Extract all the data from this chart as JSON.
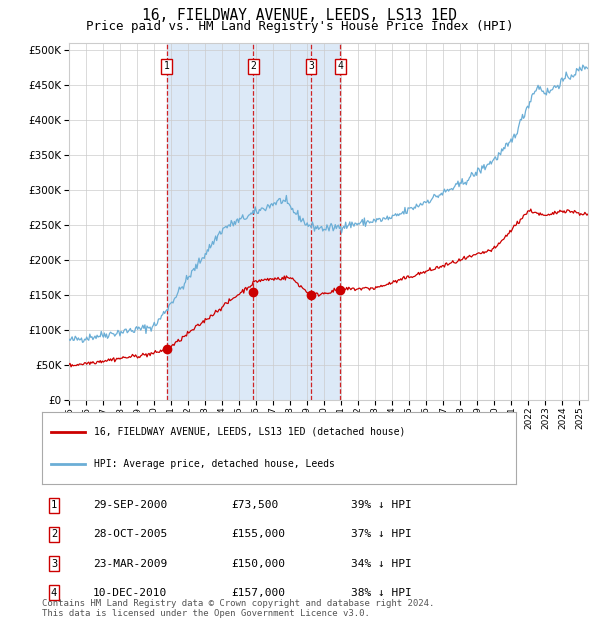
{
  "title": "16, FIELDWAY AVENUE, LEEDS, LS13 1ED",
  "subtitle": "Price paid vs. HM Land Registry's House Price Index (HPI)",
  "title_fontsize": 10.5,
  "subtitle_fontsize": 9,
  "ylim": [
    0,
    510000
  ],
  "yticks": [
    0,
    50000,
    100000,
    150000,
    200000,
    250000,
    300000,
    350000,
    400000,
    450000,
    500000
  ],
  "ytick_labels": [
    "£0",
    "£50K",
    "£100K",
    "£150K",
    "£200K",
    "£250K",
    "£300K",
    "£350K",
    "£400K",
    "£450K",
    "£500K"
  ],
  "background_color": "#ffffff",
  "plot_bg_color": "#ffffff",
  "grid_color": "#cccccc",
  "shade_color": "#dce9f7",
  "hpi_color": "#6baed6",
  "price_color": "#cc0000",
  "dashed_line_color": "#cc0000",
  "legend_label_price": "16, FIELDWAY AVENUE, LEEDS, LS13 1ED (detached house)",
  "legend_label_hpi": "HPI: Average price, detached house, Leeds",
  "transactions": [
    {
      "label": "1",
      "date_num": 2000.75,
      "price": 73500,
      "x_label": "29-SEP-2000",
      "price_label": "£73,500",
      "pct": "39%"
    },
    {
      "label": "2",
      "date_num": 2005.83,
      "price": 155000,
      "x_label": "28-OCT-2005",
      "price_label": "£155,000",
      "pct": "37%"
    },
    {
      "label": "3",
      "date_num": 2009.22,
      "price": 150000,
      "x_label": "23-MAR-2009",
      "price_label": "£150,000",
      "pct": "34%"
    },
    {
      "label": "4",
      "date_num": 2010.94,
      "price": 157000,
      "x_label": "10-DEC-2010",
      "price_label": "£157,000",
      "pct": "38%"
    }
  ],
  "footnote": "Contains HM Land Registry data © Crown copyright and database right 2024.\nThis data is licensed under the Open Government Licence v3.0.",
  "footnote_fontsize": 6.5
}
